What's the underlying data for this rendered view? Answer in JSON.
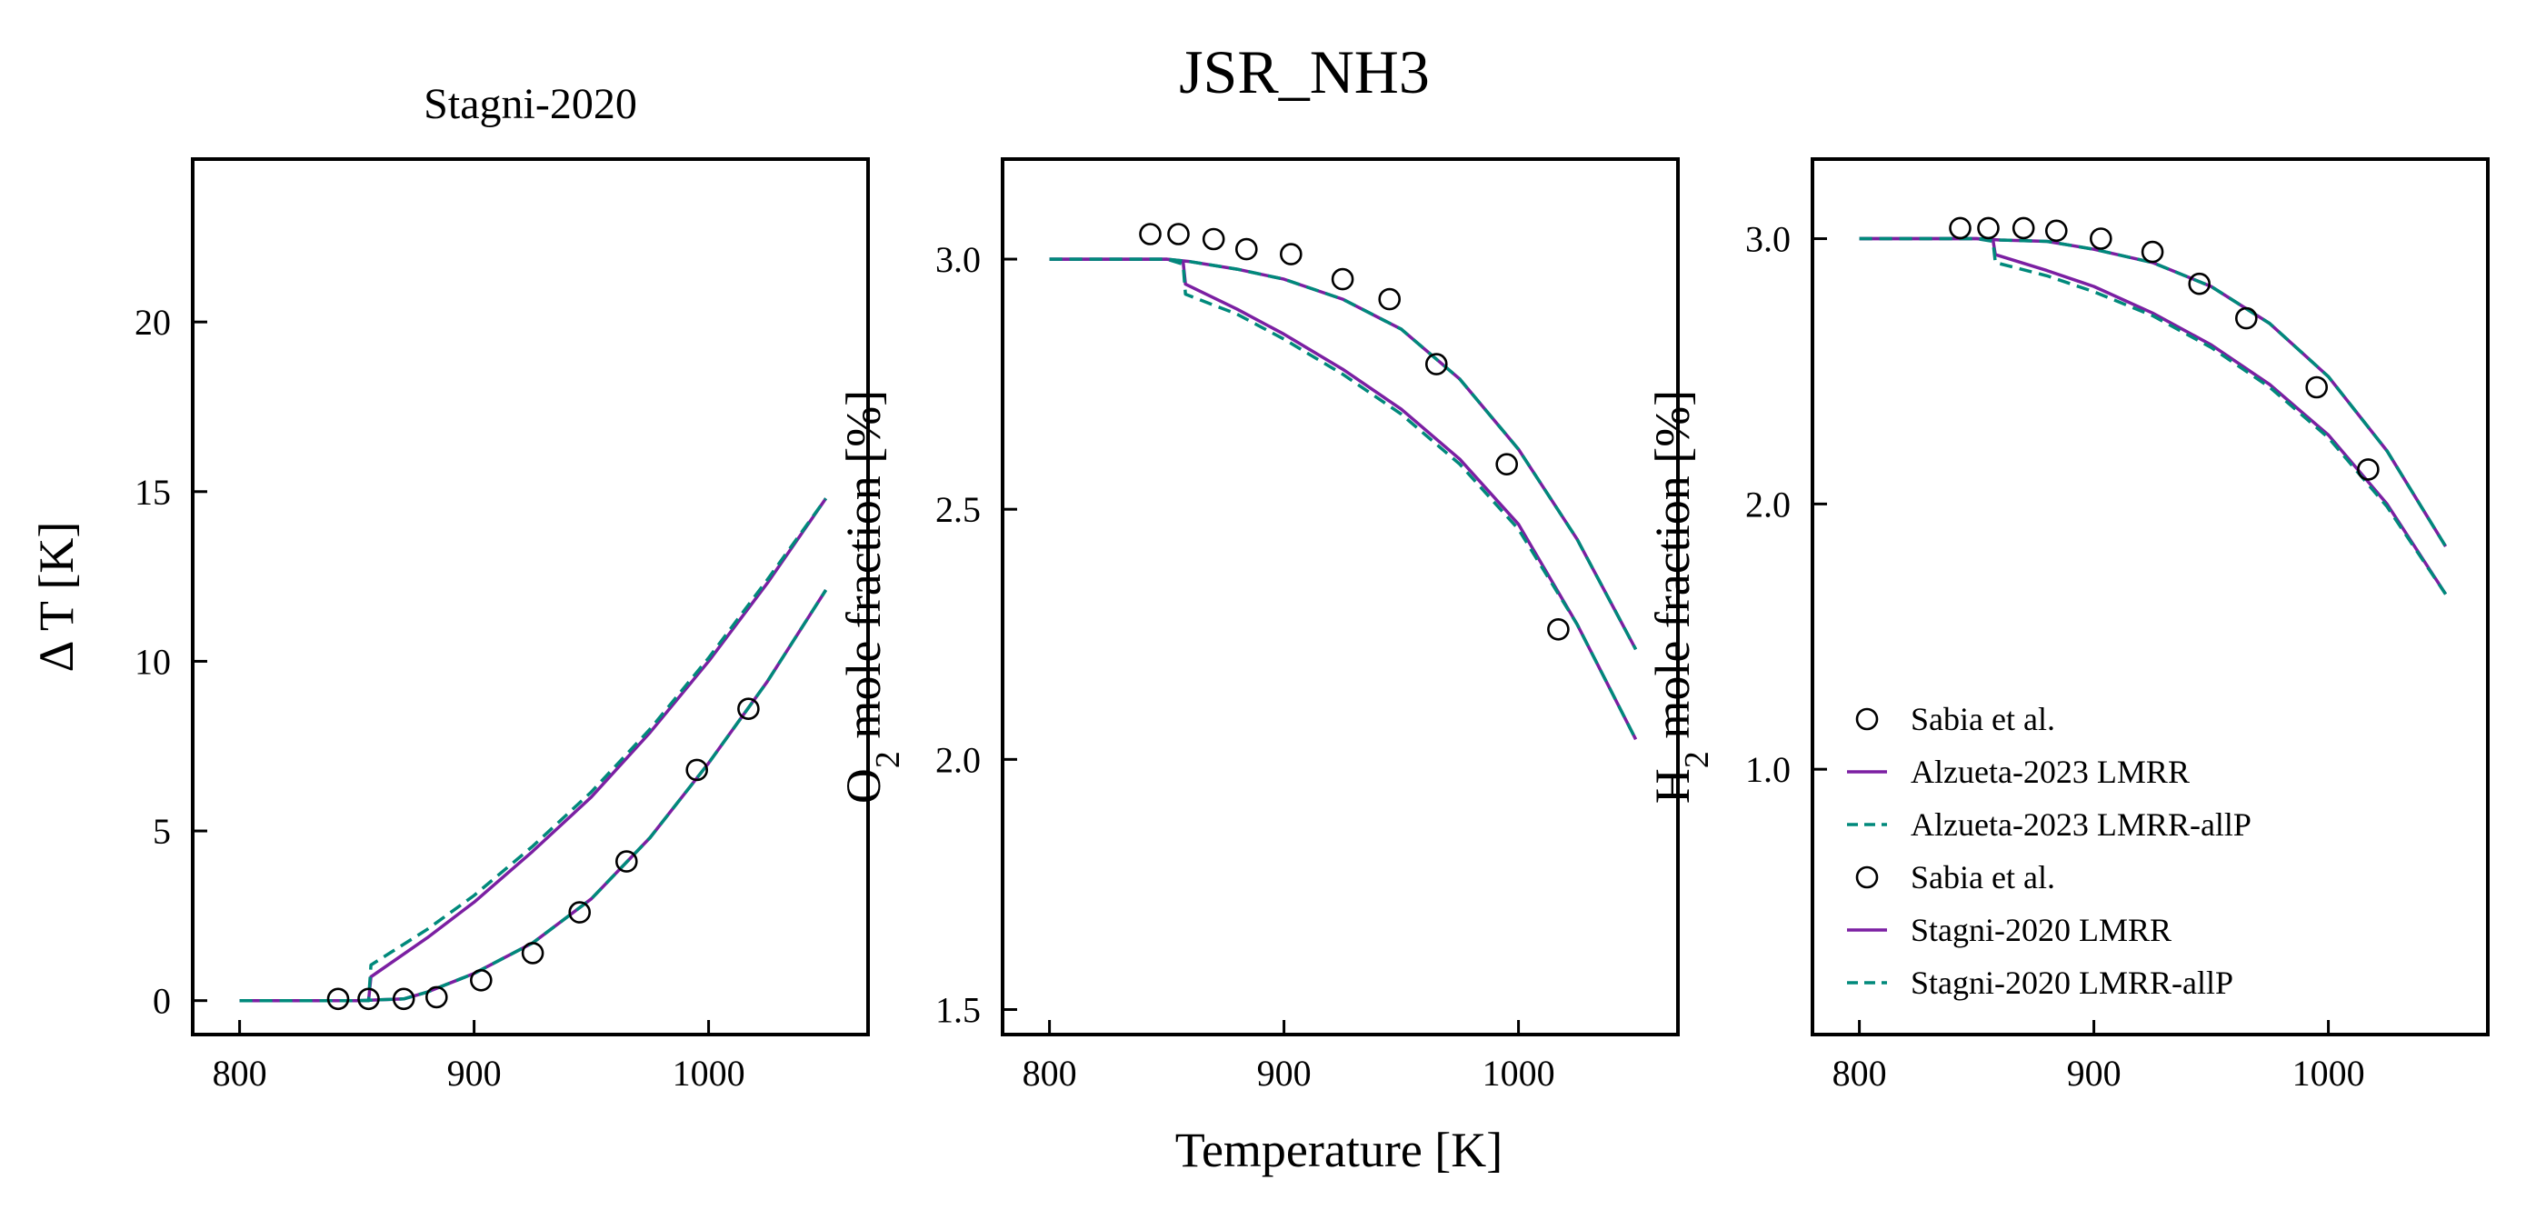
{
  "figure": {
    "title": "JSR_NH3",
    "xlabel": "Temperature [K]"
  },
  "colors": {
    "purple": "#7b1fa2",
    "teal": "#00897b",
    "black": "#000000"
  },
  "chart_data": [
    {
      "type": "line",
      "title": "Stagni-2020",
      "xlabel": "",
      "ylabel": "Δ T [K]",
      "xlim": [
        780,
        1068
      ],
      "ylim": [
        -1,
        24.8
      ],
      "xticks": [
        800,
        900,
        1000
      ],
      "yticks": [
        0,
        5,
        10,
        15,
        20
      ],
      "xtick_labels": [
        "800",
        "900",
        "1000"
      ],
      "ytick_labels": [
        "0",
        "5",
        "10",
        "15",
        "20"
      ],
      "scatter": {
        "name": "Sabia et al.",
        "x": [
          842,
          855,
          870,
          884,
          903,
          925,
          945,
          965,
          995,
          1017
        ],
        "y": [
          0.05,
          0.05,
          0.05,
          0.1,
          0.6,
          1.4,
          2.6,
          4.1,
          6.8,
          8.6
        ]
      },
      "series": [
        {
          "name": "Alzueta-2023 LMRR",
          "style": "solid",
          "color": "purple",
          "x": [
            800,
            855,
            856,
            880,
            900,
            925,
            950,
            975,
            1000,
            1025,
            1050
          ],
          "y": [
            0,
            0,
            0.7,
            1.85,
            2.9,
            4.4,
            6.0,
            7.9,
            10.0,
            12.3,
            14.8
          ]
        },
        {
          "name": "Alzueta-2023 LMRR-allP",
          "style": "dashed",
          "color": "teal",
          "x": [
            800,
            855,
            856,
            880,
            900,
            925,
            950,
            975,
            1000,
            1025,
            1050
          ],
          "y": [
            0,
            0,
            1.05,
            2.1,
            3.1,
            4.55,
            6.15,
            8.0,
            10.1,
            12.4,
            14.8
          ]
        },
        {
          "name": "Stagni-2020 LMRR",
          "style": "solid",
          "color": "purple",
          "x": [
            800,
            850,
            870,
            880,
            900,
            925,
            950,
            975,
            1000,
            1025,
            1050
          ],
          "y": [
            0,
            0,
            0.05,
            0.25,
            0.8,
            1.7,
            3.0,
            4.8,
            7.0,
            9.4,
            12.1
          ]
        },
        {
          "name": "Stagni-2020 LMRR-allP",
          "style": "dashed",
          "color": "teal",
          "x": [
            800,
            850,
            870,
            880,
            900,
            925,
            950,
            975,
            1000,
            1025,
            1050
          ],
          "y": [
            0,
            0,
            0.05,
            0.25,
            0.8,
            1.7,
            3.0,
            4.8,
            7.0,
            9.4,
            12.1
          ]
        }
      ]
    },
    {
      "type": "line",
      "title": "",
      "xlabel": "",
      "ylabel": "O2 mole fraction [%]",
      "ylabel_main": "O",
      "ylabel_sub": "2",
      "ylabel_rest": " mole fraction [%]",
      "xlim": [
        780,
        1068
      ],
      "ylim": [
        1.45,
        3.2
      ],
      "xticks": [
        800,
        900,
        1000
      ],
      "yticks": [
        1.5,
        2.0,
        2.5,
        3.0
      ],
      "xtick_labels": [
        "800",
        "900",
        "1000"
      ],
      "ytick_labels": [
        "1.5",
        "2.0",
        "2.5",
        "3.0"
      ],
      "scatter": {
        "name": "Sabia et al.",
        "x": [
          843,
          855,
          870,
          884,
          903,
          925,
          945,
          965,
          995,
          1017
        ],
        "y": [
          3.05,
          3.05,
          3.04,
          3.02,
          3.01,
          2.96,
          2.92,
          2.79,
          2.59,
          2.26
        ]
      },
      "series": [
        {
          "name": "Alzueta-2023 LMRR",
          "style": "solid",
          "color": "purple",
          "x": [
            800,
            850,
            857,
            858,
            880,
            900,
            925,
            950,
            975,
            1000,
            1025,
            1050
          ],
          "y": [
            3.0,
            3.0,
            2.995,
            2.95,
            2.9,
            2.85,
            2.78,
            2.7,
            2.6,
            2.47,
            2.27,
            2.04
          ]
        },
        {
          "name": "Alzueta-2023 LMRR-allP",
          "style": "dashed",
          "color": "teal",
          "x": [
            800,
            850,
            857,
            858,
            880,
            900,
            925,
            950,
            975,
            1000,
            1025,
            1050
          ],
          "y": [
            3.0,
            3.0,
            2.99,
            2.93,
            2.89,
            2.84,
            2.77,
            2.69,
            2.59,
            2.46,
            2.27,
            2.04
          ]
        },
        {
          "name": "Stagni-2020 LMRR",
          "style": "solid",
          "color": "purple",
          "x": [
            800,
            850,
            860,
            880,
            900,
            925,
            950,
            975,
            1000,
            1025,
            1050
          ],
          "y": [
            3.0,
            3.0,
            2.995,
            2.98,
            2.96,
            2.92,
            2.86,
            2.76,
            2.62,
            2.44,
            2.22
          ]
        },
        {
          "name": "Stagni-2020 LMRR-allP",
          "style": "dashed",
          "color": "teal",
          "x": [
            800,
            850,
            860,
            880,
            900,
            925,
            950,
            975,
            1000,
            1025,
            1050
          ],
          "y": [
            3.0,
            3.0,
            2.995,
            2.98,
            2.96,
            2.92,
            2.86,
            2.76,
            2.62,
            2.44,
            2.22
          ]
        }
      ]
    },
    {
      "type": "line",
      "title": "",
      "xlabel": "",
      "ylabel": "H2 mole fraction [%]",
      "ylabel_main": "H",
      "ylabel_sub": "2",
      "ylabel_rest": " mole fraction [%]",
      "xlim": [
        780,
        1068
      ],
      "ylim": [
        0,
        3.3
      ],
      "xticks": [
        800,
        900,
        1000
      ],
      "yticks": [
        1.0,
        2.0,
        3.0
      ],
      "xtick_labels": [
        "800",
        "900",
        "1000"
      ],
      "ytick_labels": [
        "1.0",
        "2.0",
        "3.0"
      ],
      "scatter": {
        "name": "Sabia et al.",
        "x": [
          843,
          855,
          870,
          884,
          903,
          925,
          945,
          965,
          995,
          1017
        ],
        "y": [
          3.04,
          3.04,
          3.04,
          3.03,
          3.0,
          2.95,
          2.83,
          2.7,
          2.44,
          2.13
        ]
      },
      "series": [
        {
          "name": "Alzueta-2023 LMRR",
          "style": "solid",
          "color": "purple",
          "x": [
            800,
            850,
            857,
            858,
            880,
            900,
            925,
            950,
            975,
            1000,
            1025,
            1050
          ],
          "y": [
            3.0,
            3.0,
            2.995,
            2.94,
            2.88,
            2.82,
            2.72,
            2.6,
            2.45,
            2.26,
            2.0,
            1.66
          ]
        },
        {
          "name": "Alzueta-2023 LMRR-allP",
          "style": "dashed",
          "color": "teal",
          "x": [
            800,
            850,
            857,
            858,
            880,
            900,
            925,
            950,
            975,
            1000,
            1025,
            1050
          ],
          "y": [
            3.0,
            3.0,
            2.99,
            2.91,
            2.86,
            2.8,
            2.71,
            2.59,
            2.44,
            2.25,
            1.99,
            1.66
          ]
        },
        {
          "name": "Stagni-2020 LMRR",
          "style": "solid",
          "color": "purple",
          "x": [
            800,
            850,
            860,
            880,
            900,
            925,
            950,
            975,
            1000,
            1025,
            1050
          ],
          "y": [
            3.0,
            3.0,
            2.995,
            2.99,
            2.96,
            2.91,
            2.82,
            2.68,
            2.48,
            2.2,
            1.84
          ]
        },
        {
          "name": "Stagni-2020 LMRR-allP",
          "style": "dashed",
          "color": "teal",
          "x": [
            800,
            850,
            860,
            880,
            900,
            925,
            950,
            975,
            1000,
            1025,
            1050
          ],
          "y": [
            3.0,
            3.0,
            2.995,
            2.99,
            2.96,
            2.91,
            2.82,
            2.68,
            2.48,
            2.2,
            1.84
          ]
        }
      ]
    }
  ],
  "legend": {
    "location": "lower-left of third panel",
    "entries": [
      {
        "label": "Sabia et al.",
        "marker": "circle",
        "color": "black"
      },
      {
        "label": "Alzueta-2023 LMRR",
        "style": "solid",
        "color": "purple"
      },
      {
        "label": "Alzueta-2023 LMRR-allP",
        "style": "dashed",
        "color": "teal"
      },
      {
        "label": "Sabia et al.",
        "marker": "circle",
        "color": "black"
      },
      {
        "label": "Stagni-2020 LMRR",
        "style": "solid",
        "color": "purple"
      },
      {
        "label": "Stagni-2020 LMRR-allP",
        "style": "dashed",
        "color": "teal"
      }
    ]
  }
}
